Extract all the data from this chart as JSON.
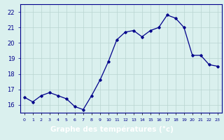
{
  "x": [
    0,
    1,
    2,
    3,
    4,
    5,
    6,
    7,
    8,
    9,
    10,
    11,
    12,
    13,
    14,
    15,
    16,
    17,
    18,
    19,
    20,
    21,
    22,
    23
  ],
  "y": [
    16.5,
    16.2,
    16.6,
    16.8,
    16.6,
    16.4,
    15.9,
    15.7,
    16.6,
    17.6,
    18.8,
    20.2,
    20.7,
    20.8,
    20.4,
    20.8,
    21.0,
    21.8,
    21.6,
    21.0,
    19.2,
    19.2,
    18.6,
    18.5
  ],
  "line_color": "#00008b",
  "marker": "D",
  "marker_size": 1.8,
  "line_width": 0.9,
  "bg_color": "#daf0ee",
  "grid_color": "#b8d4d0",
  "xlabel": "Graphe des températures (°c)",
  "xlabel_bg": "#0000aa",
  "xlabel_color": "#ffffff",
  "ylim": [
    15.5,
    22.5
  ],
  "yticks": [
    16,
    17,
    18,
    19,
    20,
    21,
    22
  ],
  "xtick_labels": [
    "0",
    "1",
    "2",
    "3",
    "4",
    "5",
    "6",
    "7",
    "8",
    "9",
    "10",
    "11",
    "12",
    "13",
    "14",
    "15",
    "16",
    "17",
    "18",
    "19",
    "20",
    "21",
    "22",
    "23"
  ],
  "axis_color": "#00008b",
  "tick_color": "#00008b",
  "figsize": [
    3.2,
    2.0
  ],
  "dpi": 100
}
